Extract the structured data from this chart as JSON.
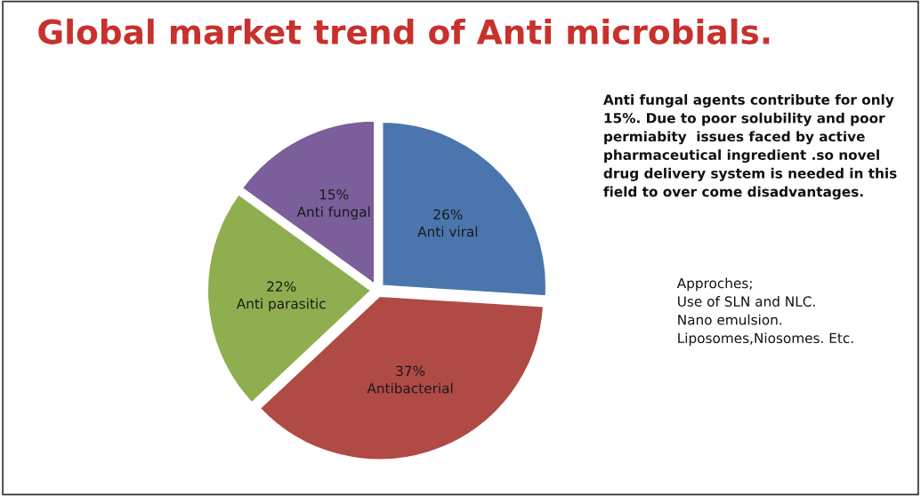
{
  "chart_data": {
    "type": "pie",
    "title": "Global market trend of Anti microbials.",
    "categories": [
      "Anti viral",
      "Antibacterial",
      "Anti parasitic",
      "Anti fungal"
    ],
    "values": [
      26,
      37,
      22,
      15
    ],
    "value_labels": [
      "26%",
      "37%",
      "22%",
      "15%"
    ],
    "colors": [
      "#4a76ad",
      "#b04a45",
      "#8fae50",
      "#7a5f9b"
    ],
    "annotations": [
      "Anti fungal agents contribute for only\n15%. Due to poor solubility and poor\npermiabity  issues faced by active\npharmaceutical ingredient .so novel\ndrug delivery system is needed in this\nfield to over come disadvantages.",
      "Approches;\nUse of SLN and NLC.\nNano emulsion.\nLiposomes,Niosomes. Etc."
    ],
    "legend": false
  }
}
